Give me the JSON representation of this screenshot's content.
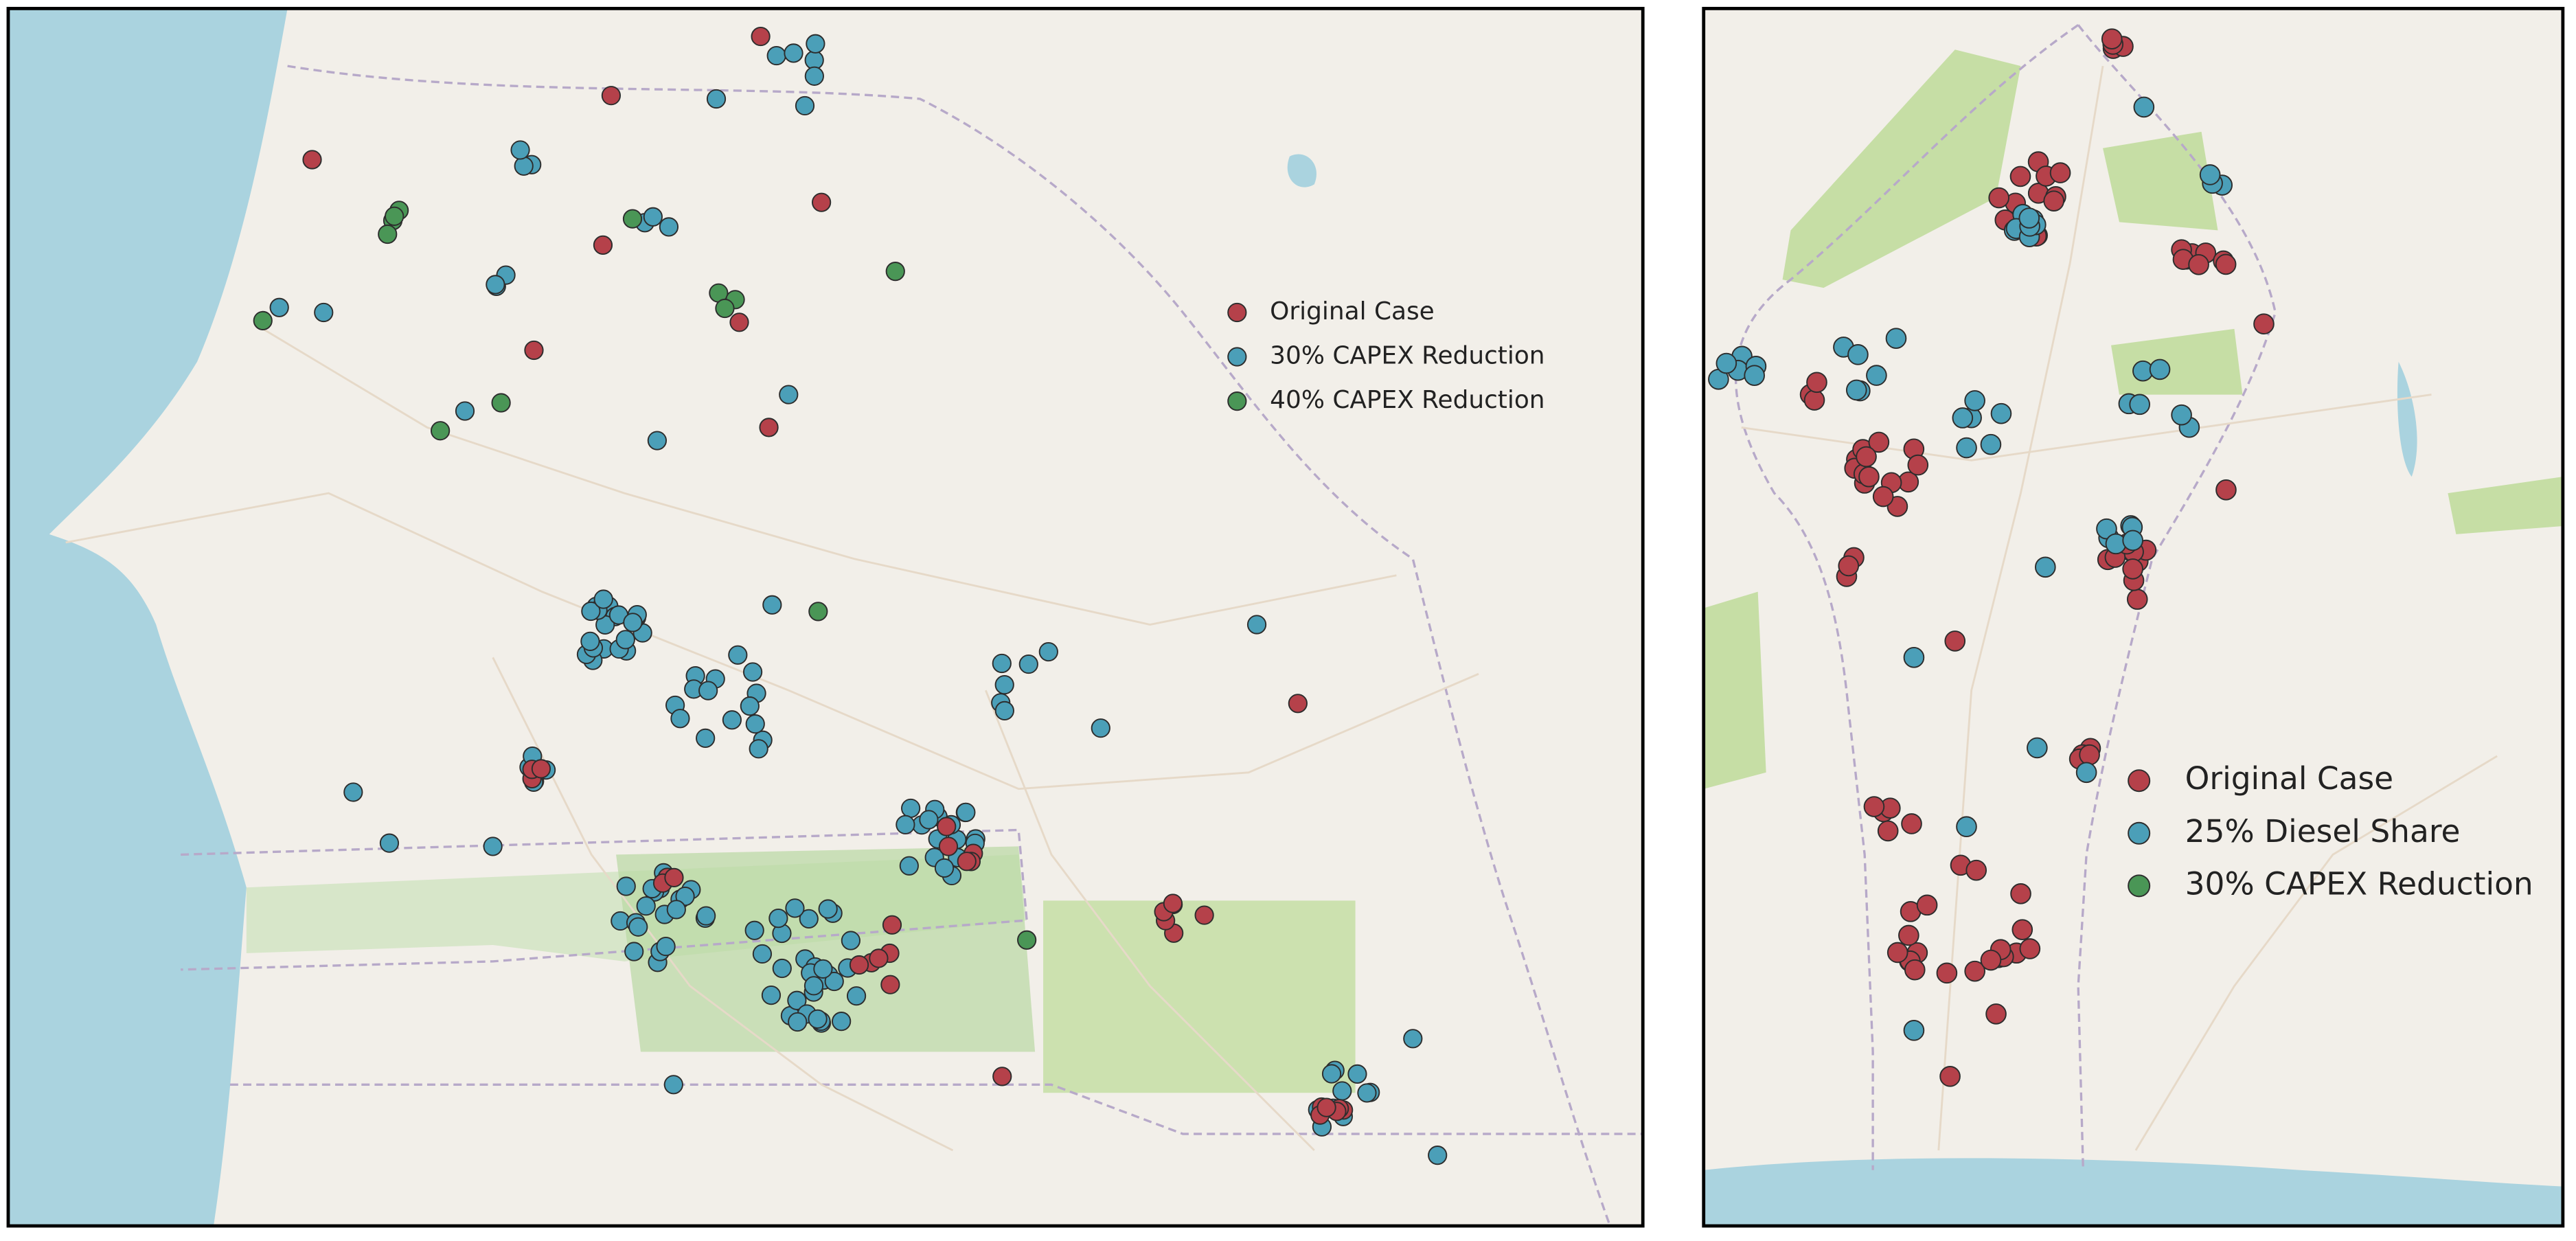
{
  "left_panel": {
    "legend": [
      {
        "label": "Original Case",
        "color": "#b5414a"
      },
      {
        "label": "30% CAPEX Reduction",
        "color": "#4b9fb8"
      },
      {
        "label": "40% CAPEX Reduction",
        "color": "#4a9656"
      }
    ]
  },
  "right_panel": {
    "legend": [
      {
        "label": "Original Case",
        "color": "#b5414a"
      },
      {
        "label": "25% Diesel Share",
        "color": "#4b9fb8"
      },
      {
        "label": "30% CAPEX Reduction",
        "color": "#4a9656"
      }
    ]
  }
}
